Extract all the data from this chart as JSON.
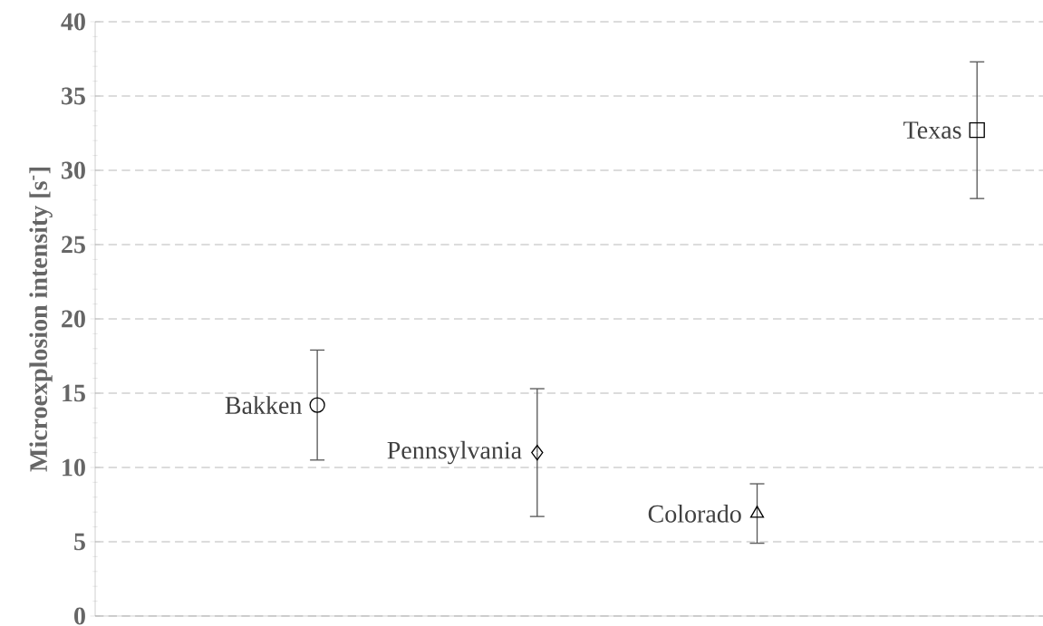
{
  "chart_data": {
    "type": "scatter",
    "ylabel": "Microexplosion intensity [s$^{-}$]",
    "categories": [
      null,
      null,
      null,
      null
    ],
    "series": [
      {
        "name": "Bakken",
        "color": "#000000",
        "marker": "circle",
        "values": [
          14.2,
          null,
          null,
          null
        ],
        "errors": [
          3.7,
          null,
          null,
          null
        ]
      },
      {
        "name": "Pennsylvania",
        "color": "#000000",
        "marker": "diamond",
        "values": [
          null,
          11.0,
          null,
          null
        ],
        "errors": [
          null,
          4.3,
          null,
          null
        ]
      },
      {
        "name": "Colorado",
        "color": "#000000",
        "marker": "triangle",
        "values": [
          null,
          null,
          6.9,
          null
        ],
        "errors": [
          null,
          null,
          2.0,
          null
        ]
      },
      {
        "name": "Texas",
        "color": "#000000",
        "marker": "square",
        "values": [
          null,
          null,
          null,
          32.7
        ],
        "errors": [
          null,
          null,
          null,
          4.6
        ]
      }
    ],
    "ylim": [
      0,
      40
    ],
    "yticks": [
      0,
      5,
      10,
      15,
      20,
      25,
      30,
      35,
      40
    ],
    "grid": "y",
    "tick_labels": "y",
    "legend": false
  }
}
